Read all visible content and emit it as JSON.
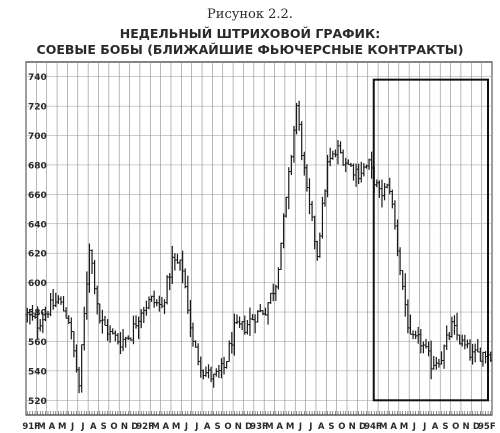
{
  "figure_label": "Рисунок 2.2.",
  "chart_data": {
    "type": "bar",
    "subtype": "weekly OHLC bar chart",
    "title": "НЕДЕЛЬНЫЙ ШТРИХОВОЙ ГРАФИК:",
    "subtitle": "СОЕВЫЕ БОБЫ (БЛИЖАЙШИЕ ФЬЮЧЕРСНЫЕ КОНТРАКТЫ)",
    "ylim": [
      510,
      750
    ],
    "grid": true,
    "y_ticks": [
      740,
      720,
      700,
      680,
      660,
      640,
      620,
      600,
      580,
      560,
      540,
      520
    ],
    "x_ticks": [
      "91F",
      "M",
      "A",
      "M",
      "J",
      "J",
      "A",
      "S",
      "O",
      "N",
      "D",
      "92F",
      "M",
      "A",
      "M",
      "J",
      "J",
      "A",
      "S",
      "O",
      "N",
      "D",
      "93F",
      "M",
      "A",
      "M",
      "J",
      "J",
      "A",
      "S",
      "O",
      "N",
      "D",
      "94F",
      "M",
      "A",
      "M",
      "J",
      "J",
      "A",
      "S",
      "O",
      "N",
      "D",
      "95F"
    ],
    "months": [
      "91F",
      "M",
      "A",
      "M",
      "J",
      "J",
      "A",
      "S",
      "O",
      "N",
      "D",
      "92F",
      "M",
      "A",
      "M",
      "J",
      "J",
      "A",
      "S",
      "O",
      "N",
      "D",
      "93F",
      "M",
      "A",
      "M",
      "J",
      "J",
      "A",
      "S",
      "O",
      "N",
      "D",
      "94F",
      "M",
      "A",
      "M",
      "J",
      "J",
      "A",
      "S",
      "O",
      "N",
      "D",
      "95F"
    ],
    "monthly_close": [
      578,
      572,
      582,
      588,
      575,
      530,
      625,
      575,
      565,
      560,
      565,
      582,
      588,
      583,
      615,
      610,
      558,
      540,
      535,
      542,
      568,
      570,
      578,
      582,
      600,
      655,
      720,
      660,
      620,
      680,
      690,
      680,
      675,
      680,
      660,
      665,
      610,
      560,
      560,
      545,
      550,
      570,
      558,
      550,
      552
    ],
    "highlight_box": {
      "from_month": "94F",
      "to_month": "95F",
      "ylim": [
        520,
        738
      ]
    }
  }
}
